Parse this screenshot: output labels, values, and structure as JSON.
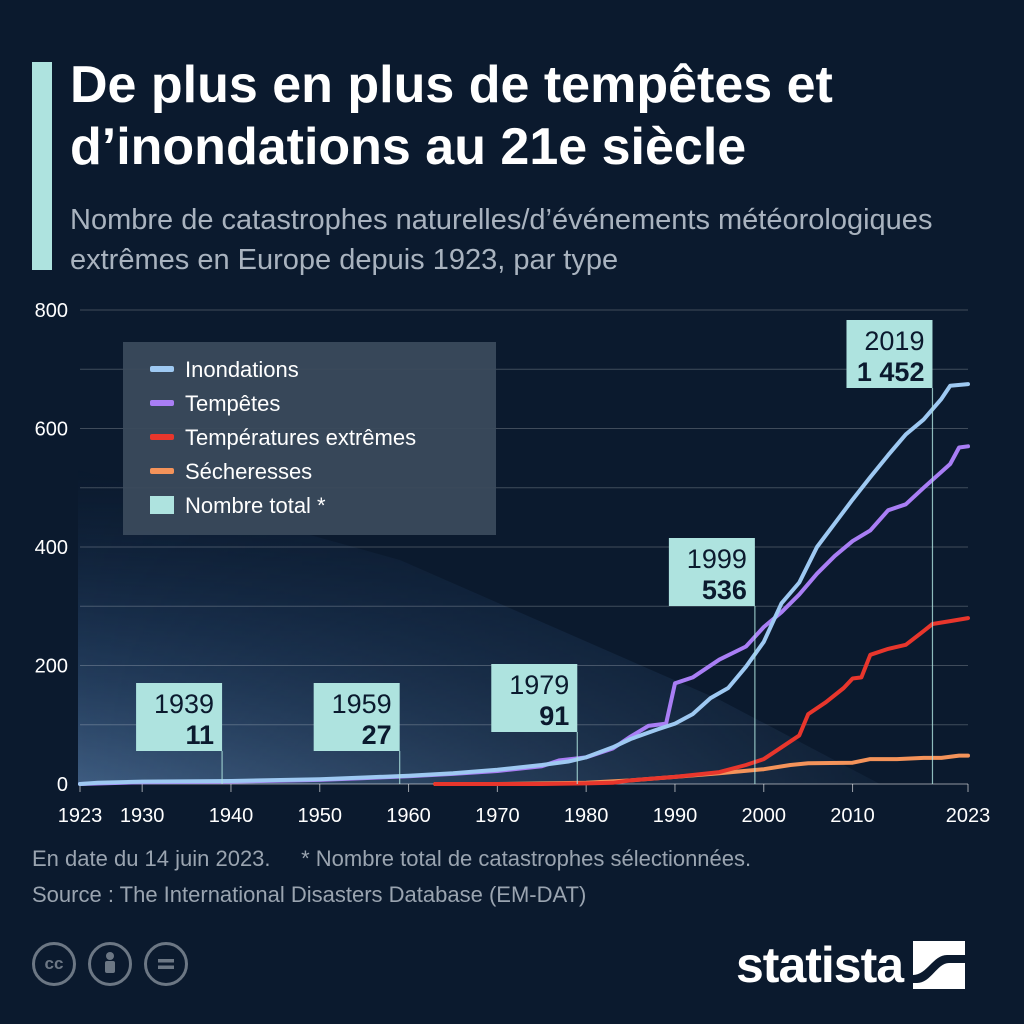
{
  "header": {
    "title": "De plus en plus de tempêtes et d’inondations au 21e siècle",
    "subtitle": "Nombre de catastrophes naturelles/d’événements météorologiques extrêmes en Europe depuis 1923, par type"
  },
  "chart_data": {
    "type": "line",
    "ylim": [
      0,
      800
    ],
    "xlim": [
      1923,
      2023
    ],
    "y_ticks": [
      "0",
      "200",
      "400",
      "600",
      "800"
    ],
    "x_ticks": [
      "1923",
      "1930",
      "1940",
      "1950",
      "1960",
      "1970",
      "1980",
      "1990",
      "2000",
      "2010",
      "2023"
    ],
    "grid": true,
    "legend_position": "top-left",
    "legend": [
      "Inondations",
      "Tempêtes",
      "Températures extrêmes",
      "Sécheresses",
      "Nombre total *"
    ],
    "series": [
      {
        "name": "Inondations",
        "color": "#9ec9f2",
        "points": [
          [
            1923,
            0
          ],
          [
            1925,
            2
          ],
          [
            1930,
            4
          ],
          [
            1940,
            5
          ],
          [
            1950,
            8
          ],
          [
            1955,
            11
          ],
          [
            1960,
            14
          ],
          [
            1965,
            18
          ],
          [
            1970,
            24
          ],
          [
            1975,
            32
          ],
          [
            1978,
            38
          ],
          [
            1980,
            45
          ],
          [
            1983,
            62
          ],
          [
            1985,
            76
          ],
          [
            1988,
            92
          ],
          [
            1990,
            102
          ],
          [
            1992,
            118
          ],
          [
            1994,
            145
          ],
          [
            1996,
            162
          ],
          [
            1998,
            198
          ],
          [
            2000,
            240
          ],
          [
            2002,
            305
          ],
          [
            2004,
            340
          ],
          [
            2006,
            400
          ],
          [
            2008,
            440
          ],
          [
            2010,
            480
          ],
          [
            2012,
            518
          ],
          [
            2014,
            555
          ],
          [
            2016,
            590
          ],
          [
            2018,
            615
          ],
          [
            2020,
            650
          ],
          [
            2021,
            672
          ],
          [
            2023,
            675
          ]
        ]
      },
      {
        "name": "Tempêtes",
        "color": "#a97ef5",
        "points": [
          [
            1923,
            0
          ],
          [
            1930,
            3
          ],
          [
            1940,
            4
          ],
          [
            1950,
            7
          ],
          [
            1955,
            10
          ],
          [
            1960,
            13
          ],
          [
            1965,
            17
          ],
          [
            1970,
            22
          ],
          [
            1975,
            30
          ],
          [
            1977,
            40
          ],
          [
            1980,
            45
          ],
          [
            1983,
            60
          ],
          [
            1985,
            80
          ],
          [
            1987,
            98
          ],
          [
            1989,
            102
          ],
          [
            1990,
            170
          ],
          [
            1992,
            180
          ],
          [
            1995,
            210
          ],
          [
            1998,
            232
          ],
          [
            2000,
            265
          ],
          [
            2002,
            290
          ],
          [
            2004,
            320
          ],
          [
            2006,
            355
          ],
          [
            2008,
            385
          ],
          [
            2010,
            410
          ],
          [
            2012,
            428
          ],
          [
            2014,
            462
          ],
          [
            2016,
            472
          ],
          [
            2018,
            500
          ],
          [
            2021,
            540
          ],
          [
            2022,
            568
          ],
          [
            2023,
            570
          ]
        ]
      },
      {
        "name": "Températures extrêmes",
        "color": "#e8362c",
        "points": [
          [
            1963,
            0
          ],
          [
            1970,
            0
          ],
          [
            1975,
            0
          ],
          [
            1980,
            1
          ],
          [
            1983,
            2
          ],
          [
            1985,
            6
          ],
          [
            1990,
            12
          ],
          [
            1995,
            20
          ],
          [
            1998,
            32
          ],
          [
            2000,
            42
          ],
          [
            2002,
            62
          ],
          [
            2004,
            82
          ],
          [
            2005,
            118
          ],
          [
            2007,
            138
          ],
          [
            2009,
            162
          ],
          [
            2010,
            178
          ],
          [
            2011,
            180
          ],
          [
            2012,
            218
          ],
          [
            2014,
            228
          ],
          [
            2016,
            235
          ],
          [
            2018,
            258
          ],
          [
            2019,
            270
          ],
          [
            2021,
            275
          ],
          [
            2023,
            280
          ]
        ]
      },
      {
        "name": "Sécheresses",
        "color": "#f4935a",
        "points": [
          [
            1963,
            0
          ],
          [
            1970,
            0
          ],
          [
            1980,
            2
          ],
          [
            1985,
            6
          ],
          [
            1990,
            12
          ],
          [
            1995,
            18
          ],
          [
            2000,
            25
          ],
          [
            2003,
            32
          ],
          [
            2005,
            35
          ],
          [
            2010,
            36
          ],
          [
            2012,
            42
          ],
          [
            2015,
            42
          ],
          [
            2018,
            44
          ],
          [
            2020,
            44
          ],
          [
            2022,
            48
          ],
          [
            2023,
            48
          ]
        ]
      }
    ],
    "annotations": [
      {
        "year": "1939",
        "total": "11",
        "x": 1939
      },
      {
        "year": "1959",
        "total": "27",
        "x": 1959
      },
      {
        "year": "1979",
        "total": "91",
        "x": 1979
      },
      {
        "year": "1999",
        "total": "536",
        "x": 1999
      },
      {
        "year": "2019",
        "total": "1 452",
        "x": 2019
      }
    ]
  },
  "footer": {
    "date_note": "En date du 14 juin 2023.",
    "total_note": "* Nombre total de catastrophes sélectionnées.",
    "source": "Source : The International Disasters Database (EM-DAT)"
  },
  "license_icons": [
    "cc-icon",
    "person-icon",
    "equals-icon"
  ],
  "logo": {
    "text": "statista"
  }
}
